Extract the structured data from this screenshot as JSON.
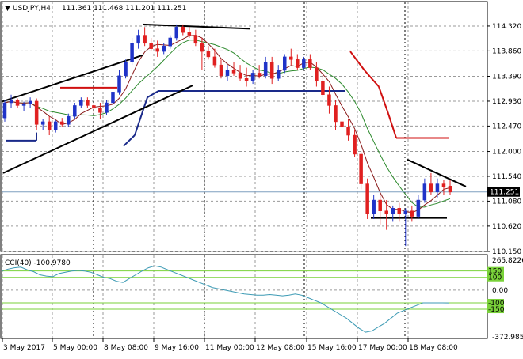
{
  "header": {
    "symbol": "USDJPY,H4",
    "ohlc": "111.361 111.468 111.201 111.251",
    "indicator_label": "CCI(40) -100.9780"
  },
  "chart_data": [
    {
      "type": "candlestick",
      "title": "USDJPY,H4",
      "ylim": [
        110.15,
        114.48
      ],
      "y_ticks": [
        "114.320",
        "113.860",
        "113.390",
        "112.930",
        "112.470",
        "112.000",
        "111.540",
        "111.080",
        "110.620",
        "110.150"
      ],
      "current_price": "111.251",
      "x_ticks": [
        "3 May 2017",
        "5 May 00:00",
        "8 May 08:00",
        "9 May 16:00",
        "11 May 00:00",
        "12 May 08:00",
        "15 May 16:00",
        "17 May 00:00",
        "18 May 08:00"
      ],
      "candle_count": 71,
      "colors": {
        "up": "#1f33c8",
        "down": "#e02020",
        "ma_fast": "#8a1a1a",
        "ma_slow": "#2e8b2e",
        "support_line": "#1a2a8a",
        "resistance_line": "#d01010",
        "trendline": "#000000"
      },
      "candles": [
        [
          112.62,
          112.95,
          112.55,
          112.9
        ],
        [
          112.9,
          113.05,
          112.8,
          112.95
        ],
        [
          112.95,
          112.98,
          112.8,
          112.85
        ],
        [
          112.85,
          112.92,
          112.75,
          112.88
        ],
        [
          112.88,
          113.0,
          112.8,
          112.93
        ],
        [
          112.93,
          112.98,
          112.4,
          112.5
        ],
        [
          112.5,
          112.6,
          112.4,
          112.55
        ],
        [
          112.55,
          112.65,
          112.3,
          112.4
        ],
        [
          112.4,
          112.58,
          112.35,
          112.55
        ],
        [
          112.55,
          112.62,
          112.45,
          112.5
        ],
        [
          112.5,
          112.7,
          112.45,
          112.65
        ],
        [
          112.65,
          112.9,
          112.6,
          112.85
        ],
        [
          112.85,
          113.0,
          112.8,
          112.95
        ],
        [
          112.95,
          113.0,
          112.8,
          112.85
        ],
        [
          112.85,
          112.9,
          112.7,
          112.8
        ],
        [
          112.8,
          112.9,
          112.6,
          112.72
        ],
        [
          112.72,
          112.95,
          112.68,
          112.9
        ],
        [
          112.9,
          113.2,
          112.85,
          113.1
        ],
        [
          113.1,
          113.5,
          113.05,
          113.4
        ],
        [
          113.4,
          113.7,
          113.35,
          113.65
        ],
        [
          113.65,
          114.1,
          113.6,
          114.0
        ],
        [
          114.0,
          114.25,
          113.9,
          114.15
        ],
        [
          114.15,
          114.3,
          113.95,
          114.0
        ],
        [
          114.0,
          114.1,
          113.85,
          113.9
        ],
        [
          113.9,
          114.05,
          113.75,
          113.85
        ],
        [
          113.85,
          114.0,
          113.8,
          113.95
        ],
        [
          113.95,
          114.15,
          113.9,
          114.1
        ],
        [
          114.1,
          114.35,
          114.05,
          114.3
        ],
        [
          114.3,
          114.35,
          114.15,
          114.2
        ],
        [
          114.2,
          114.3,
          114.1,
          114.15
        ],
        [
          114.15,
          114.25,
          113.95,
          114.0
        ],
        [
          114.0,
          114.1,
          113.5,
          113.85
        ],
        [
          113.85,
          113.95,
          113.7,
          113.75
        ],
        [
          113.75,
          113.9,
          113.55,
          113.6
        ],
        [
          113.6,
          113.7,
          113.35,
          113.4
        ],
        [
          113.4,
          113.6,
          113.3,
          113.5
        ],
        [
          113.5,
          113.65,
          113.4,
          113.45
        ],
        [
          113.45,
          113.6,
          113.3,
          113.35
        ],
        [
          113.35,
          113.55,
          113.2,
          113.3
        ],
        [
          113.3,
          113.5,
          113.25,
          113.45
        ],
        [
          113.45,
          113.6,
          113.35,
          113.4
        ],
        [
          113.4,
          113.75,
          113.35,
          113.65
        ],
        [
          113.65,
          113.75,
          113.25,
          113.35
        ],
        [
          113.35,
          113.6,
          113.3,
          113.5
        ],
        [
          113.5,
          113.8,
          113.45,
          113.75
        ],
        [
          113.75,
          113.9,
          113.6,
          113.7
        ],
        [
          113.7,
          113.8,
          113.5,
          113.55
        ],
        [
          113.55,
          113.75,
          113.5,
          113.7
        ],
        [
          113.7,
          113.8,
          113.5,
          113.55
        ],
        [
          113.55,
          113.65,
          113.2,
          113.3
        ],
        [
          113.3,
          113.45,
          113.0,
          113.05
        ],
        [
          113.05,
          113.2,
          112.7,
          112.85
        ],
        [
          112.85,
          112.95,
          112.4,
          112.55
        ],
        [
          112.55,
          112.7,
          112.35,
          112.45
        ],
        [
          112.45,
          112.6,
          112.2,
          112.3
        ],
        [
          112.3,
          112.4,
          111.9,
          111.95
        ],
        [
          111.95,
          112.0,
          111.3,
          111.4
        ],
        [
          111.4,
          111.5,
          110.75,
          110.85
        ],
        [
          110.85,
          111.2,
          110.75,
          111.1
        ],
        [
          111.1,
          111.2,
          110.65,
          110.9
        ],
        [
          110.9,
          111.1,
          110.55,
          110.85
        ],
        [
          110.85,
          111.0,
          110.7,
          110.95
        ],
        [
          110.95,
          111.05,
          110.7,
          110.85
        ],
        [
          110.85,
          110.95,
          110.25,
          110.9
        ],
        [
          110.9,
          111.0,
          110.7,
          110.8
        ],
        [
          110.8,
          111.2,
          110.75,
          111.1
        ],
        [
          111.1,
          111.5,
          111.05,
          111.4
        ],
        [
          111.4,
          111.6,
          111.2,
          111.25
        ],
        [
          111.25,
          111.5,
          111.15,
          111.4
        ],
        [
          111.4,
          111.47,
          111.2,
          111.35
        ],
        [
          111.36,
          111.47,
          111.2,
          111.25
        ]
      ]
    },
    {
      "type": "line",
      "title": "CCI(40) -100.9780",
      "ylim": [
        -372.9858,
        265.8226
      ],
      "y_ticks": [
        "265.8226",
        "0.00",
        "-372.9858"
      ],
      "levels": [
        150,
        100,
        -100,
        -150
      ],
      "level_labels": [
        "150",
        "100",
        "-100",
        "-150"
      ],
      "colors": {
        "line": "#3c9ab4",
        "levels": "#7ad23a"
      },
      "values": [
        150,
        165,
        175,
        180,
        160,
        145,
        120,
        110,
        105,
        130,
        140,
        150,
        155,
        150,
        140,
        120,
        100,
        90,
        70,
        60,
        90,
        120,
        150,
        175,
        190,
        180,
        160,
        140,
        120,
        100,
        80,
        60,
        40,
        20,
        10,
        0,
        -10,
        -20,
        -30,
        -35,
        -40,
        -40,
        -35,
        -40,
        -45,
        -40,
        -30,
        -40,
        -60,
        -80,
        -100,
        -130,
        -160,
        -190,
        -220,
        -260,
        -300,
        -330,
        -320,
        -290,
        -260,
        -220,
        -180,
        -160,
        -140,
        -120,
        -100,
        -100,
        -100,
        -100,
        -101
      ]
    }
  ]
}
